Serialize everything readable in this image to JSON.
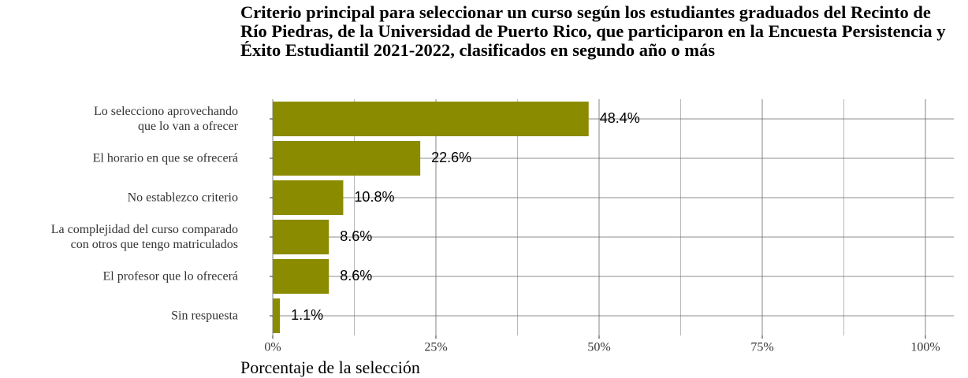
{
  "chart_data": {
    "type": "bar",
    "orientation": "horizontal",
    "title": "Criterio principal para seleccionar un curso según los estudiantes graduados del Recinto de Río Piedras, de la Universidad de Puerto Rico, que participaron en la Encuesta Persistencia y Éxito Estudiantil 2021-2022, clasificados en segundo año o más",
    "x_label": "Porcentaje de la selección",
    "categories": [
      "Lo selecciono aprovechando\nque lo van a ofrecer",
      "El horario en que se ofrecerá",
      "No establezco criterio",
      "La complejidad del curso comparado\ncon otros que tengo matriculados",
      "El profesor que lo ofrecerá",
      "Sin respuesta"
    ],
    "values": [
      48.4,
      22.6,
      10.8,
      8.6,
      8.6,
      1.1
    ],
    "value_labels": [
      "48.4%",
      "22.6%",
      "10.8%",
      "8.6%",
      "8.6%",
      "1.1%"
    ],
    "color": "#8b8b00",
    "xlim": [
      0,
      100
    ],
    "xticks": [
      {
        "value": 0,
        "label": "0%"
      },
      {
        "value": 25,
        "label": "25%"
      },
      {
        "value": 50,
        "label": "50%"
      },
      {
        "value": 75,
        "label": "75%"
      },
      {
        "value": 100,
        "label": "100%"
      }
    ],
    "xminor": [
      12.5,
      37.5,
      62.5,
      87.5
    ],
    "grid": true
  }
}
